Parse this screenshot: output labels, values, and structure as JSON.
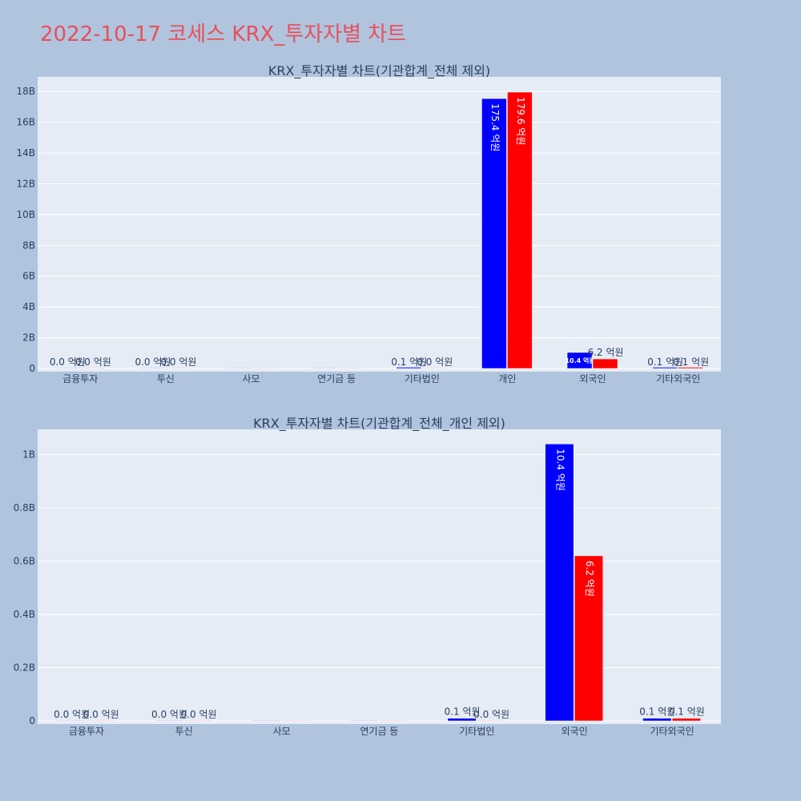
{
  "page": {
    "title": "2022-10-17 코세스 KRX_투자자별 차트"
  },
  "colors": {
    "series_a": "#0000ff",
    "series_b": "#ff0000"
  },
  "chart_data": [
    {
      "type": "bar",
      "title": "KRX_투자자별 차트(기관합계_전체 제외)",
      "categories": [
        "금융투자",
        "투신",
        "사모",
        "연기금 등",
        "기타법인",
        "개인",
        "외국인",
        "기타외국인"
      ],
      "series": [
        {
          "values": [
            0,
            0,
            0,
            0,
            10000000,
            17540000000,
            1040000000,
            10000000
          ],
          "labels": [
            "0.0 억원",
            "0.0 억원",
            "",
            "",
            "0.1 억원",
            "175.4 억원",
            "10.4 억원",
            "0.1 억원"
          ]
        },
        {
          "values": [
            0,
            0,
            0,
            0,
            0,
            17960000000,
            620000000,
            10000000
          ],
          "labels": [
            "0.0 억원",
            "0.0 억원",
            "",
            "",
            "0.0 억원",
            "179.6 억원",
            "6.2 억원",
            "0.1 억원"
          ]
        }
      ],
      "yticks": [
        {
          "v": 0,
          "t": "0"
        },
        {
          "v": 2000000000,
          "t": "2B"
        },
        {
          "v": 4000000000,
          "t": "4B"
        },
        {
          "v": 6000000000,
          "t": "6B"
        },
        {
          "v": 8000000000,
          "t": "8B"
        },
        {
          "v": 10000000000,
          "t": "10B"
        },
        {
          "v": 12000000000,
          "t": "12B"
        },
        {
          "v": 14000000000,
          "t": "14B"
        },
        {
          "v": 16000000000,
          "t": "16B"
        },
        {
          "v": 18000000000,
          "t": "18B"
        }
      ],
      "ylim": [
        0,
        18950000000
      ],
      "grid": true
    },
    {
      "type": "bar",
      "title": "KRX_투자자별 차트(기관합계_전체_개인 제외)",
      "categories": [
        "금융투자",
        "투신",
        "사모",
        "연기금 등",
        "기타법인",
        "외국인",
        "기타외국인"
      ],
      "series": [
        {
          "values": [
            0,
            0,
            0,
            0,
            10000000,
            1040000000,
            10000000
          ],
          "labels": [
            "0.0 억원",
            "0.0 억원",
            "",
            "",
            "0.1 억원",
            "10.4 억원",
            "0.1 억원"
          ]
        },
        {
          "values": [
            0,
            0,
            0,
            0,
            0,
            620000000,
            10000000
          ],
          "labels": [
            "0.0 억원",
            "0.0 억원",
            "",
            "",
            "0.0 억원",
            "6.2 억원",
            "0.1 억원"
          ]
        }
      ],
      "yticks": [
        {
          "v": 0,
          "t": "0"
        },
        {
          "v": 200000000,
          "t": "0.2B"
        },
        {
          "v": 400000000,
          "t": "0.4B"
        },
        {
          "v": 600000000,
          "t": "0.6B"
        },
        {
          "v": 800000000,
          "t": "0.8B"
        },
        {
          "v": 1000000000,
          "t": "1B"
        }
      ],
      "ylim": [
        0,
        1095000000
      ],
      "grid": true
    }
  ]
}
